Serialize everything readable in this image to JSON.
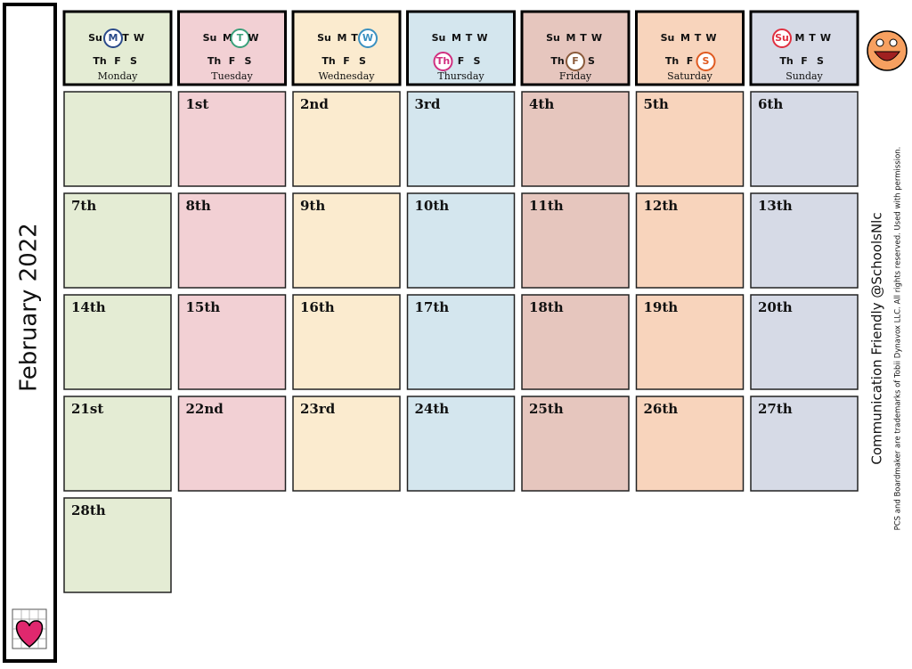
{
  "title": "February 2022",
  "week_letters": [
    "Su",
    "M",
    "T",
    "W",
    "Th",
    "F",
    "S"
  ],
  "days": [
    {
      "name": "Monday",
      "highlight": 1,
      "color": "#e4ecd4",
      "ring": "#2a4a8a"
    },
    {
      "name": "Tuesday",
      "highlight": 2,
      "color": "#f2d0d4",
      "ring": "#3aa07a"
    },
    {
      "name": "Wednesday",
      "highlight": 3,
      "color": "#fbebcf",
      "ring": "#3a90c0"
    },
    {
      "name": "Thursday",
      "highlight": 4,
      "color": "#d4e6ee",
      "ring": "#d03080"
    },
    {
      "name": "Friday",
      "highlight": 5,
      "color": "#e6c6be",
      "ring": "#8a5a3a"
    },
    {
      "name": "Saturday",
      "highlight": 6,
      "color": "#f8d4bc",
      "ring": "#e05a20"
    },
    {
      "name": "Sunday",
      "highlight": 0,
      "color": "#d6dae6",
      "ring": "#e03040"
    }
  ],
  "weeks": [
    [
      null,
      "1st",
      "2nd",
      "3rd",
      "4th",
      "5th",
      "6th"
    ],
    [
      "7th",
      "8th",
      "9th",
      "10th",
      "11th",
      "12th",
      "13th"
    ],
    [
      "14th",
      "15th",
      "16th",
      "17th",
      "18th",
      "19th",
      "20th"
    ],
    [
      "21st",
      "22nd",
      "23rd",
      "24th",
      "25th",
      "26th",
      "27th"
    ],
    [
      "28th"
    ]
  ],
  "credit": "Communication Friendly @SchoolsNlc",
  "copyright": "PCS and Boardmaker are trademarks of Tobii Dynavox LLC.  All rights reserved.  Used with permission."
}
